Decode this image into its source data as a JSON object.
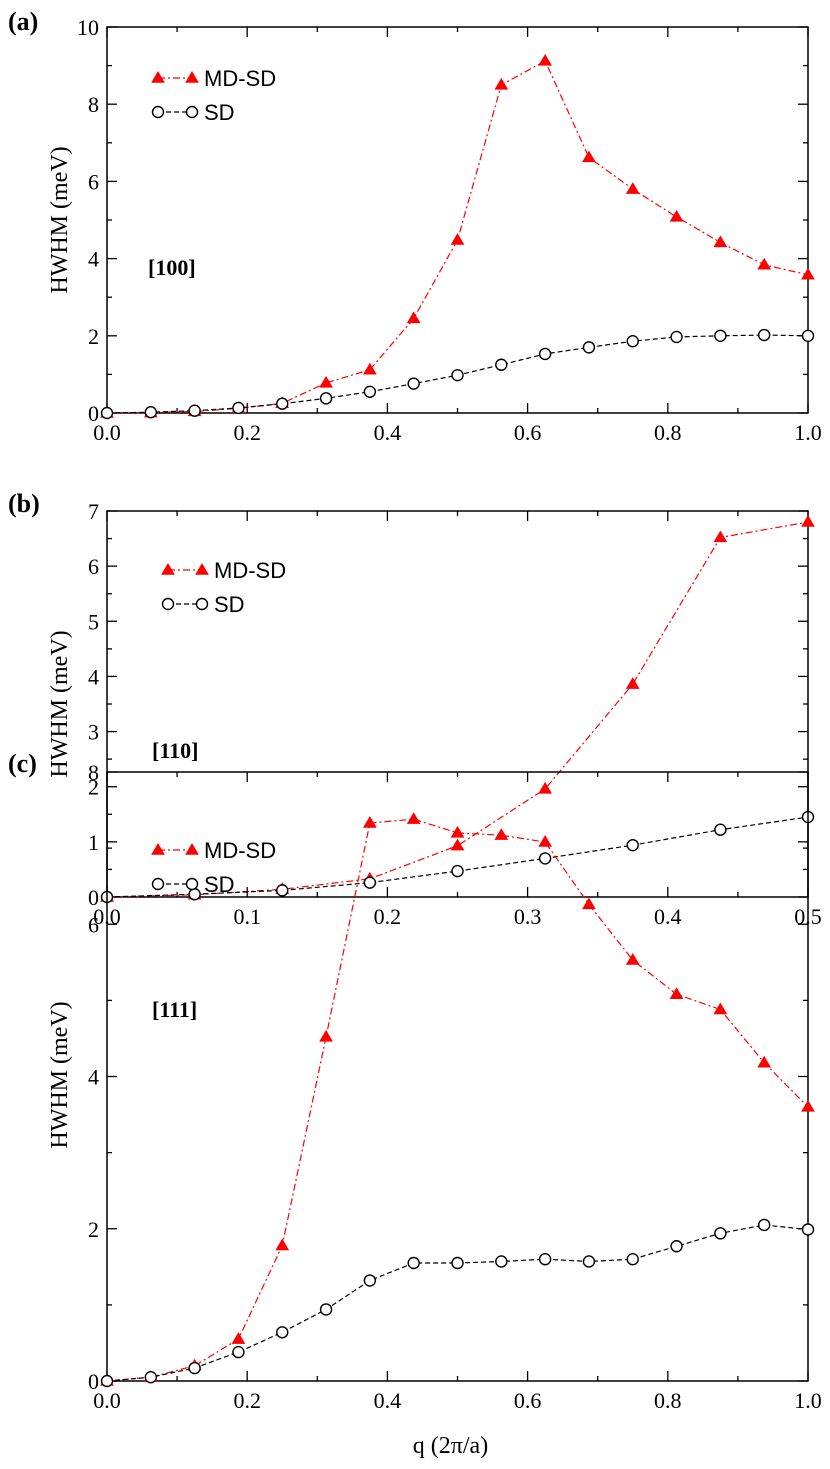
{
  "chart_data": [
    {
      "type": "line",
      "panel_label": "(a)",
      "direction": "[100]",
      "ylabel": "HWHM  (meV)",
      "xlabel": "",
      "xlim": [
        0,
        1.0
      ],
      "ylim": [
        0,
        10
      ],
      "xticks": [
        "0.0",
        "0.2",
        "0.4",
        "0.6",
        "0.8",
        "1.0"
      ],
      "yticks": [
        "0",
        "2",
        "4",
        "6",
        "8",
        "10"
      ],
      "legend_position": "top-left",
      "series": [
        {
          "name": "MD-SD",
          "color": "#ff0000",
          "marker": "filled-triangle",
          "line": "dash-dot",
          "x": [
            0,
            0.0625,
            0.125,
            0.1875,
            0.25,
            0.3125,
            0.375,
            0.4375,
            0.5,
            0.5625,
            0.625,
            0.6875,
            0.75,
            0.8125,
            0.875,
            0.9375,
            1.0
          ],
          "y": [
            0,
            0.01,
            0.04,
            0.12,
            0.25,
            0.78,
            1.12,
            2.45,
            4.48,
            8.5,
            9.12,
            6.62,
            5.8,
            5.08,
            4.42,
            3.84,
            3.58
          ]
        },
        {
          "name": "SD",
          "color": "#000000",
          "marker": "open-circle",
          "line": "dashed",
          "x": [
            0,
            0.0625,
            0.125,
            0.1875,
            0.25,
            0.3125,
            0.375,
            0.4375,
            0.5,
            0.5625,
            0.625,
            0.6875,
            0.75,
            0.8125,
            0.875,
            0.9375,
            1.0
          ],
          "y": [
            0,
            0.02,
            0.06,
            0.13,
            0.24,
            0.38,
            0.55,
            0.76,
            0.98,
            1.25,
            1.53,
            1.7,
            1.86,
            1.97,
            2.0,
            2.02,
            2.0
          ]
        }
      ]
    },
    {
      "type": "line",
      "panel_label": "(b)",
      "direction": "[110]",
      "ylabel": "HWHM  (meV)",
      "xlabel": "",
      "xlim": [
        0,
        0.5
      ],
      "ylim": [
        0,
        7
      ],
      "xticks": [
        "0.0",
        "0.1",
        "0.2",
        "0.3",
        "0.4",
        "0.5"
      ],
      "yticks": [
        "0",
        "1",
        "2",
        "3",
        "4",
        "5",
        "6",
        "7"
      ],
      "legend_position": "top-left",
      "series": [
        {
          "name": "MD-SD",
          "color": "#ff0000",
          "marker": "filled-triangle",
          "line": "dash-dot",
          "x": [
            0,
            0.0625,
            0.125,
            0.1875,
            0.25,
            0.3125,
            0.375,
            0.4375,
            0.5
          ],
          "y": [
            0,
            0.04,
            0.14,
            0.33,
            0.93,
            1.96,
            3.86,
            6.52,
            6.8
          ]
        },
        {
          "name": "SD",
          "color": "#000000",
          "marker": "open-circle",
          "line": "dashed",
          "x": [
            0,
            0.0625,
            0.125,
            0.1875,
            0.25,
            0.3125,
            0.375,
            0.4375,
            0.5
          ],
          "y": [
            0,
            0.05,
            0.12,
            0.26,
            0.47,
            0.7,
            0.94,
            1.22,
            1.45
          ]
        }
      ]
    },
    {
      "type": "line",
      "panel_label": "(c)",
      "direction": "[111]",
      "ylabel": "HWHM  (meV)",
      "xlabel": "q (2π/a)",
      "xlim": [
        0,
        1.0
      ],
      "ylim": [
        0,
        8
      ],
      "xticks": [
        "0.0",
        "0.2",
        "0.4",
        "0.6",
        "0.8",
        "1.0"
      ],
      "yticks": [
        "0",
        "2",
        "4",
        "6",
        "8"
      ],
      "legend_position": "top-left",
      "series": [
        {
          "name": "MD-SD",
          "color": "#ff0000",
          "marker": "filled-triangle",
          "line": "dash-dot",
          "x": [
            0,
            0.0625,
            0.125,
            0.1875,
            0.25,
            0.3125,
            0.375,
            0.4375,
            0.5,
            0.5625,
            0.625,
            0.6875,
            0.75,
            0.8125,
            0.875,
            0.9375,
            1.0
          ],
          "y": [
            0,
            0.05,
            0.2,
            0.55,
            1.78,
            4.52,
            7.33,
            7.38,
            7.2,
            7.17,
            7.08,
            6.26,
            5.53,
            5.08,
            4.88,
            4.18,
            3.6
          ]
        },
        {
          "name": "SD",
          "color": "#000000",
          "marker": "open-circle",
          "line": "dashed",
          "x": [
            0,
            0.0625,
            0.125,
            0.1875,
            0.25,
            0.3125,
            0.375,
            0.4375,
            0.5,
            0.5625,
            0.625,
            0.6875,
            0.75,
            0.8125,
            0.875,
            0.9375,
            1.0
          ],
          "y": [
            0,
            0.05,
            0.17,
            0.38,
            0.64,
            0.94,
            1.32,
            1.55,
            1.55,
            1.57,
            1.6,
            1.57,
            1.6,
            1.77,
            1.94,
            2.05,
            1.99
          ]
        }
      ]
    }
  ]
}
